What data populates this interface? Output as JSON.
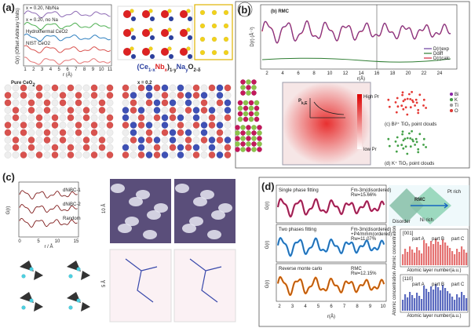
{
  "panels": {
    "a": {
      "label": "(a)",
      "y_axis": "G(r) (Offset Arbitrary Units)",
      "x_axis": "r (Å)",
      "x_ticks": [
        "1",
        "2",
        "3",
        "4",
        "5",
        "6",
        "7",
        "8",
        "9",
        "10",
        "11"
      ],
      "legend": [
        "x = 0.20, Nb/Na",
        "x = 0.20, no Na",
        "Hydrothermal CeO2",
        "NIST CeO2"
      ],
      "formula": [
        "(Ce",
        "1-x",
        "Nb",
        "x",
        ")",
        "1-y",
        "Na",
        "y",
        "O",
        "2-δ"
      ],
      "pure": "Pure CeO",
      "pure_sub": "2",
      "doped": "x = 0.2"
    },
    "b": {
      "label": "(b)",
      "title": "(b) RMC",
      "y_axis": "D(r) (Å⁻²)",
      "x_axis": "r(Å)",
      "x_ticks": [
        "2",
        "4",
        "6",
        "8",
        "10",
        "12",
        "14",
        "16",
        "18",
        "20",
        "22",
        "24"
      ],
      "legend": [
        "D(r)exp",
        "Ddiff",
        "D(r)calc"
      ],
      "high": "High Pr",
      "low": "low Pr",
      "prob": "P",
      "prob_sub": "k,E",
      "cloud1": "(c) Bi³⁺ TiO₃ point clouds",
      "cloud2": "(d) K⁺ TiO₃ point clouds",
      "elements": [
        "Bi",
        "K",
        "Ti",
        "O"
      ]
    },
    "c": {
      "label": "(c)",
      "y_axis": "G(r)",
      "x_axis": "r / Å",
      "x_ticks": [
        "0",
        "5",
        "10",
        "15"
      ],
      "curves": [
        "dNiBC-1",
        "dNiBC-2",
        "Random"
      ],
      "scale1": "10 Å",
      "scale2": "5 Å"
    },
    "d": {
      "label": "(d)",
      "y_axis": "G(r)",
      "x_axis": "r(Å)",
      "x_ticks": [
        "2",
        "3",
        "4",
        "5",
        "6",
        "7",
        "8",
        "9",
        "10"
      ],
      "rows": [
        {
          "title": "Single phase fitting",
          "model": [
            "Fm-3m(disordered)"
          ],
          "fit": "Rw=15.66%"
        },
        {
          "title": "Two phases fitting",
          "model": [
            "Fm-3m(disordered)",
            "+P4/mmm(ordered)"
          ],
          "fit": "Rw=11.07%"
        },
        {
          "title": "Reverse monte carlo",
          "model": [
            "RMC"
          ],
          "fit": "Rw=12.15%"
        }
      ],
      "diagram": {
        "left": "Disorder",
        "arrow": "RMC",
        "top": "Pt rich",
        "bottom": "Ni rich"
      },
      "bars": {
        "dir1": "[001]",
        "dir2": "[110]",
        "parts": [
          "part A",
          "part B",
          "part C"
        ],
        "x_axis": "Atomic layer number(a.u.)",
        "y_axis": "Atomic concentration"
      }
    }
  }
}
